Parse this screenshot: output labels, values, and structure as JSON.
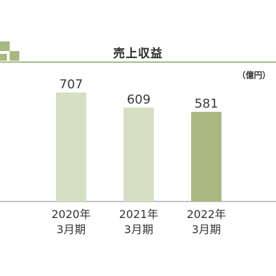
{
  "chart_data": {
    "type": "bar",
    "title": "売上収益",
    "unit": "（億円）",
    "categories": [
      "2020年\n3月期",
      "2021年\n3月期",
      "2022年\n3月期"
    ],
    "values": [
      707,
      609,
      581
    ],
    "ylim": [
      0,
      707
    ],
    "grid": false,
    "colors": [
      "#d6dfc4",
      "#d6dfc4",
      "#a7b981"
    ],
    "value_color": "#3a3a3a"
  }
}
